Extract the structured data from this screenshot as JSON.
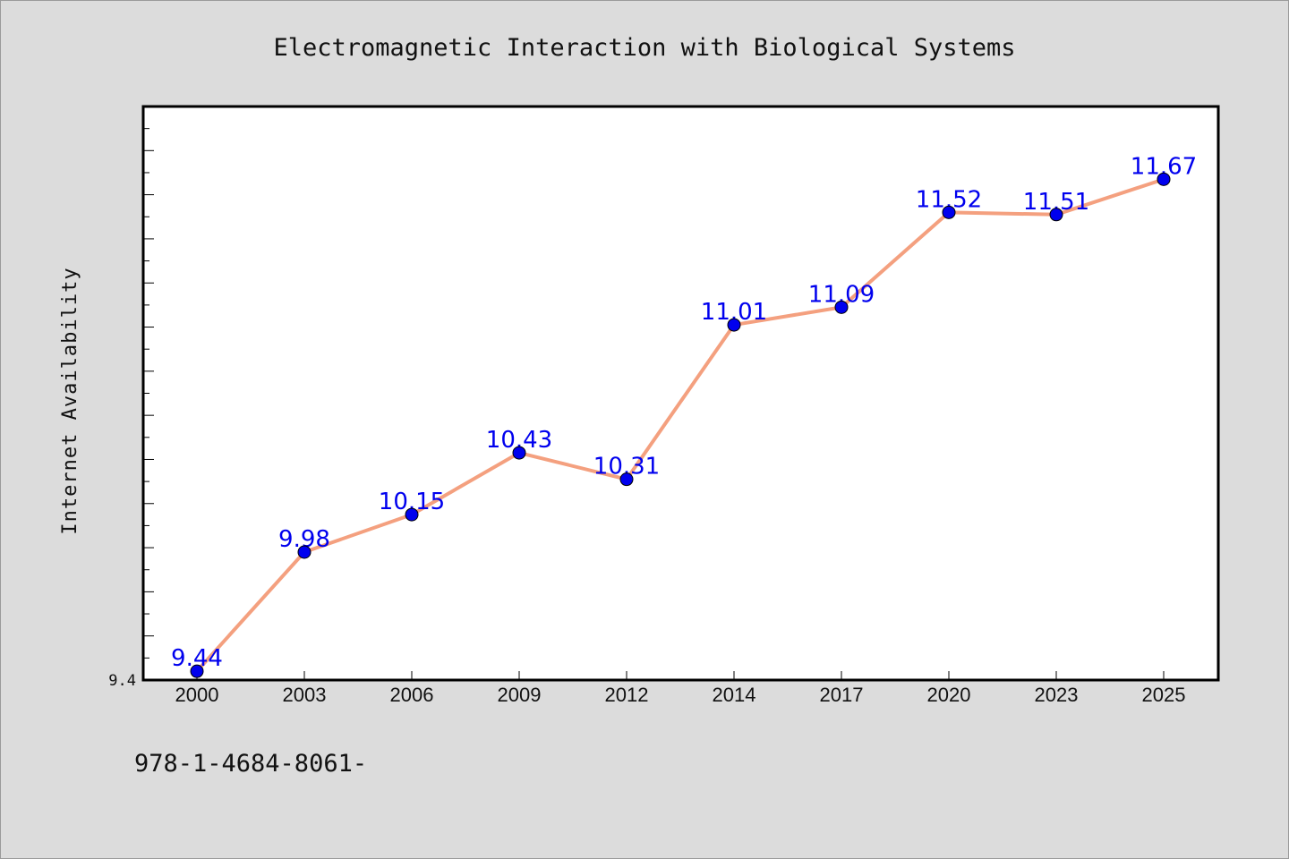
{
  "chart_data": {
    "type": "line",
    "title": "Electromagnetic Interaction with Biological Systems",
    "xlabel": "",
    "ylabel": "Internet Availability",
    "categories": [
      "2000",
      "2003",
      "2006",
      "2009",
      "2012",
      "2014",
      "2017",
      "2020",
      "2023",
      "2025"
    ],
    "series": [
      {
        "values": [
          9.44,
          9.98,
          10.15,
          10.43,
          10.31,
          11.01,
          11.09,
          11.52,
          11.51,
          11.67
        ]
      }
    ],
    "data_labels": [
      "9.44",
      "9.98",
      "10.15",
      "10.43",
      "10.31",
      "11.01",
      "11.09",
      "11.52",
      "11.51",
      "11.67"
    ],
    "yticks_labeled": [
      "9.4"
    ],
    "ylim": [
      9.4,
      12.0
    ],
    "grid": false,
    "line_color": "#f4a07f",
    "marker_color": "#0000ee",
    "label_color": "#0000ee"
  },
  "footer_text": "978-1-4684-8061-"
}
